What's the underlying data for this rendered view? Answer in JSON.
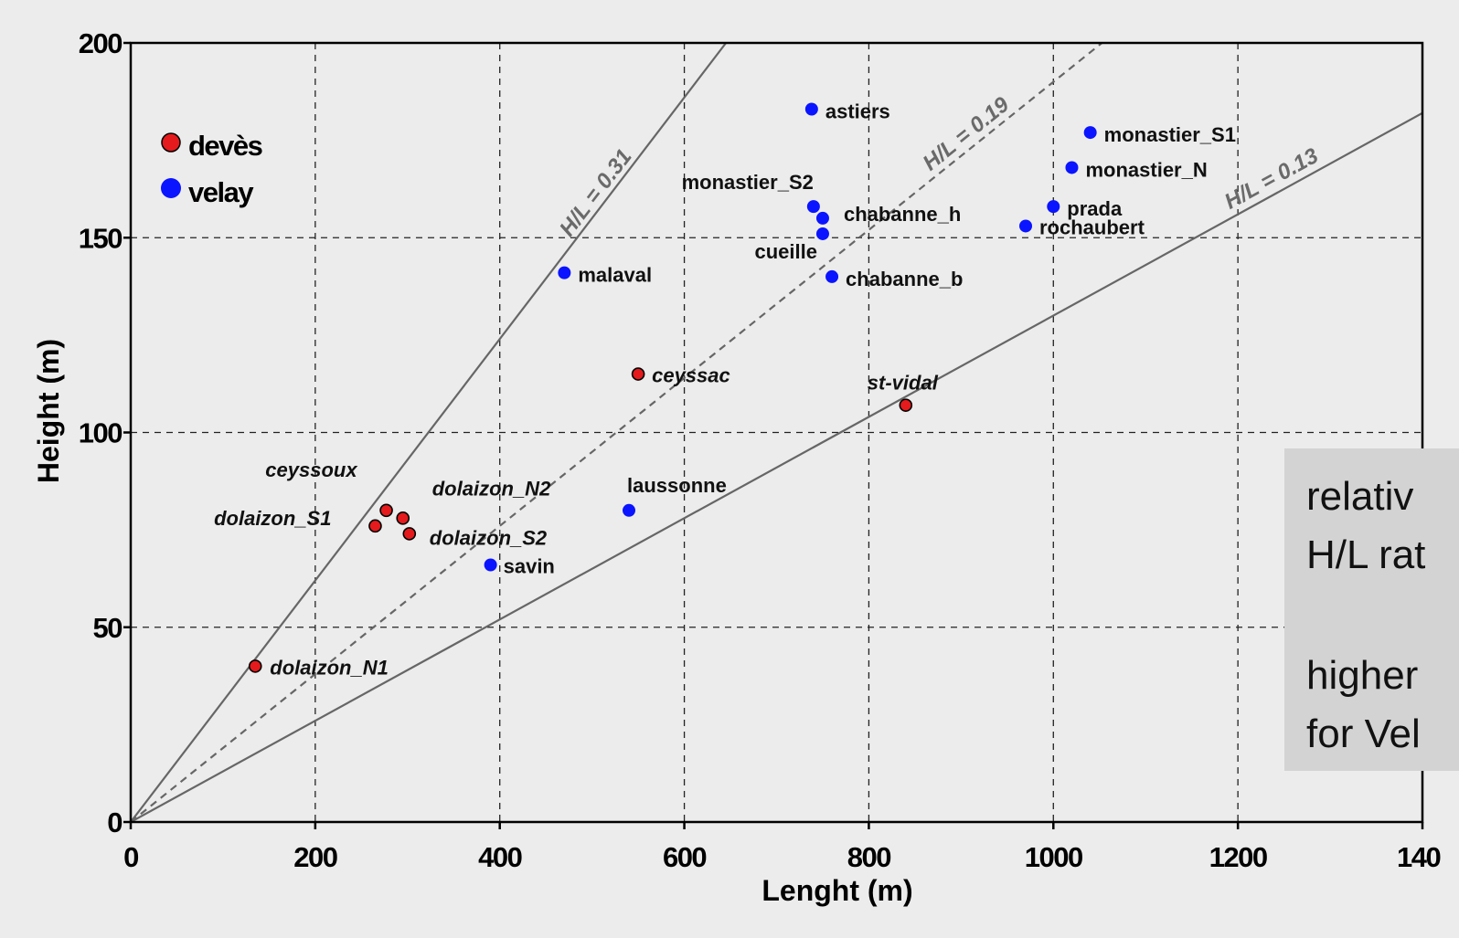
{
  "chart_data": {
    "type": "scatter",
    "xlabel": "Lenght (m)",
    "ylabel": "Height (m)",
    "xlim": [
      0,
      1400
    ],
    "ylim": [
      0,
      200
    ],
    "x_ticks": [
      "0",
      "200",
      "400",
      "600",
      "800",
      "1000",
      "1200",
      "140"
    ],
    "y_ticks": [
      "0",
      "50",
      "100",
      "150",
      "200"
    ],
    "grid": true,
    "legend_position": "top-left",
    "series": [
      {
        "name": "devès",
        "color": "#e41a1c",
        "italic_labels": true,
        "points": [
          {
            "label": "dolaizon_N1",
            "x": 135,
            "y": 40
          },
          {
            "label": "dolaizon_S1",
            "x": 265,
            "y": 76
          },
          {
            "label": "ceyssoux",
            "x": 277,
            "y": 80
          },
          {
            "label": "dolaizon_N2",
            "x": 295,
            "y": 78
          },
          {
            "label": "dolaizon_S2",
            "x": 302,
            "y": 74
          },
          {
            "label": "ceyssac",
            "x": 550,
            "y": 115
          },
          {
            "label": "st-vidal",
            "x": 840,
            "y": 107
          }
        ]
      },
      {
        "name": "velay",
        "color": "#0a14ff",
        "italic_labels": false,
        "points": [
          {
            "label": "savin",
            "x": 390,
            "y": 66
          },
          {
            "label": "malaval",
            "x": 470,
            "y": 141
          },
          {
            "label": "laussonne",
            "x": 540,
            "y": 80
          },
          {
            "label": "astiers",
            "x": 738,
            "y": 183
          },
          {
            "label": "monastier_S2",
            "x": 740,
            "y": 158
          },
          {
            "label": "chabanne_h",
            "x": 750,
            "y": 155
          },
          {
            "label": "cueille",
            "x": 750,
            "y": 151
          },
          {
            "label": "chabanne_b",
            "x": 760,
            "y": 140
          },
          {
            "label": "rochaubert",
            "x": 970,
            "y": 153
          },
          {
            "label": "prada",
            "x": 1000,
            "y": 158
          },
          {
            "label": "monastier_N",
            "x": 1020,
            "y": 168
          },
          {
            "label": "monastier_S1",
            "x": 1040,
            "y": 177
          }
        ]
      }
    ],
    "reference_lines": [
      {
        "label": "H/L = 0.31",
        "slope": 0.31,
        "style": "solid"
      },
      {
        "label": "H/L = 0.19",
        "slope": 0.19,
        "style": "dashed"
      },
      {
        "label": "H/L = 0.13",
        "slope": 0.13,
        "style": "solid"
      }
    ]
  },
  "overlay_text": [
    "relativ",
    "H/L rat",
    "",
    "higher",
    "for Vel"
  ]
}
